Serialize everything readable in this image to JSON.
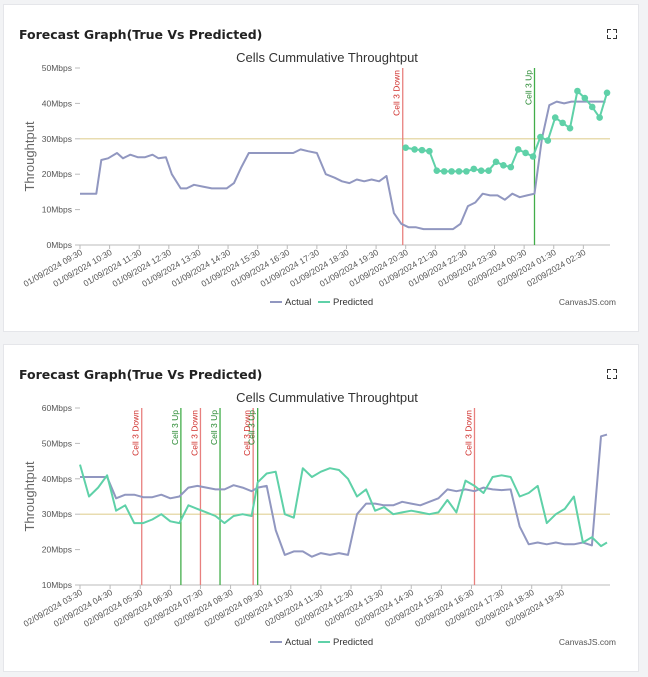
{
  "credit": "CanvasJS.com",
  "cards": [
    {
      "heading": "Forecast Graph(True Vs Predicted)",
      "chart_data": {
        "type": "line",
        "title": "Cells Cummulative Throughtput",
        "ylabel": "Throughtput",
        "xlabel": "",
        "y_ticks": [
          "0Mbps",
          "10Mbps",
          "20Mbps",
          "30Mbps",
          "40Mbps",
          "50Mbps"
        ],
        "ylim": [
          0,
          50
        ],
        "x_labels": [
          "01/09/2024 09:30",
          "01/09/2024 10:30",
          "01/09/2024 11:30",
          "01/09/2024 12:30",
          "01/09/2024 13:30",
          "01/09/2024 14:30",
          "01/09/2024 15:30",
          "01/09/2024 16:30",
          "01/09/2024 17:30",
          "01/09/2024 18:30",
          "01/09/2024 19:30",
          "01/09/2024 20:30",
          "01/09/2024 21:30",
          "01/09/2024 22:30",
          "01/09/2024 23:30",
          "02/09/2024 00:30",
          "02/09/2024 01:30",
          "02/09/2024 02:30"
        ],
        "xlim": [
          0,
          17.9
        ],
        "threshold": 30,
        "threshold_color": "#e8dcb0",
        "series": [
          {
            "name": "Actual",
            "color": "#9197c0",
            "markers": false,
            "x": [
              0,
              0.55,
              0.72,
              0.95,
              1.25,
              1.45,
              1.7,
              1.95,
              2.2,
              2.45,
              2.65,
              2.9,
              3.1,
              3.4,
              3.6,
              3.85,
              4.15,
              4.45,
              4.7,
              4.95,
              5.2,
              5.45,
              5.7,
              5.95,
              6.2,
              6.45,
              6.7,
              6.95,
              7.2,
              7.45,
              7.7,
              8,
              8.3,
              8.6,
              8.85,
              9.1,
              9.35,
              9.6,
              9.85,
              10.1,
              10.35,
              10.6,
              10.85,
              11.1,
              11.35,
              11.6,
              11.85,
              12.1,
              12.35,
              12.6,
              12.85,
              13.1,
              13.35,
              13.6,
              13.85,
              14.1,
              14.35,
              14.6,
              14.85,
              15.1,
              15.35,
              15.6,
              15.85,
              16.1,
              16.35,
              16.6,
              16.85,
              17.1,
              17.4,
              17.75
            ],
            "values": [
              14.5,
              14.5,
              24,
              24.5,
              26,
              24.5,
              25.5,
              24.8,
              24.8,
              25.5,
              24.5,
              24.8,
              20,
              16,
              16,
              17,
              16.5,
              16,
              16,
              16,
              17.5,
              22,
              26,
              26,
              26,
              26,
              26,
              26,
              26,
              27,
              26.5,
              26,
              20,
              19,
              18,
              17.5,
              18.5,
              18,
              18.5,
              18,
              19.5,
              9,
              6,
              5,
              5,
              4.5,
              4.5,
              4.5,
              4.5,
              4.5,
              6,
              11,
              12,
              14.5,
              14,
              14,
              12.8,
              14.5,
              13.5,
              14,
              14.5,
              30,
              39.5,
              40.5,
              40,
              40.5,
              40.5,
              40.5,
              40.5,
              40.5
            ]
          },
          {
            "name": "Predicted",
            "color": "#5fd1a8",
            "markers": true,
            "x": [
              11,
              11.3,
              11.55,
              11.8,
              12.05,
              12.3,
              12.55,
              12.8,
              13.05,
              13.3,
              13.55,
              13.8,
              14.05,
              14.3,
              14.55,
              14.8,
              15.05,
              15.3,
              15.55,
              15.8,
              16.05,
              16.3,
              16.55,
              16.8,
              17.05,
              17.3,
              17.55,
              17.8
            ],
            "values": [
              27.5,
              27,
              26.8,
              26.5,
              21,
              20.8,
              20.8,
              20.8,
              20.8,
              21.5,
              21,
              21,
              23.5,
              22.5,
              22,
              27,
              26,
              25,
              30.5,
              29.5,
              36,
              34.5,
              33,
              43.5,
              41.5,
              39,
              36,
              43
            ]
          }
        ],
        "markers": [
          {
            "label": "Cell 3 Down",
            "x": 10.9,
            "color": "#e8807e"
          },
          {
            "label": "Cell 3 Up",
            "x": 15.35,
            "color": "#42ad4a"
          }
        ],
        "legend": "bottom-center"
      }
    },
    {
      "heading": "Forecast Graph(True Vs Predicted)",
      "chart_data": {
        "type": "line",
        "title": "Cells Cummulative Throughtput",
        "ylabel": "Throughtput",
        "xlabel": "",
        "y_ticks": [
          "10Mbps",
          "20Mbps",
          "30Mbps",
          "40Mbps",
          "50Mbps",
          "60Mbps"
        ],
        "ylim": [
          10,
          60
        ],
        "x_labels": [
          "02/09/2024 03:30",
          "02/09/2024 04:30",
          "02/09/2024 05:30",
          "02/09/2024 06:30",
          "02/09/2024 07:30",
          "02/09/2024 08:30",
          "02/09/2024 09:30",
          "02/09/2024 10:30",
          "02/09/2024 11:30",
          "02/09/2024 12:30",
          "02/09/2024 13:30",
          "02/09/2024 14:30",
          "02/09/2024 15:30",
          "02/09/2024 16:30",
          "02/09/2024 17:30",
          "02/09/2024 18:30",
          "02/09/2024 19:30"
        ],
        "xlim": [
          0,
          17.6
        ],
        "threshold": 30,
        "threshold_color": "#e8dcb0",
        "series": [
          {
            "name": "Actual",
            "color": "#9197c0",
            "markers": false,
            "x": [
              0,
              0.3,
              0.6,
              0.9,
              1.2,
              1.5,
              1.8,
              2.1,
              2.4,
              2.7,
              3,
              3.3,
              3.6,
              3.9,
              4.2,
              4.5,
              4.8,
              5.1,
              5.4,
              5.7,
              5.9,
              6.2,
              6.5,
              6.8,
              7.1,
              7.4,
              7.7,
              8,
              8.3,
              8.6,
              8.9,
              9.2,
              9.5,
              9.8,
              10.1,
              10.4,
              10.7,
              11,
              11.3,
              11.6,
              11.9,
              12.2,
              12.5,
              12.8,
              13.1,
              13.4,
              13.7,
              14,
              14.3,
              14.6,
              14.9,
              15.2,
              15.5,
              15.8,
              16.1,
              16.4,
              16.7,
              17,
              17.3,
              17.5
            ],
            "values": [
              40.5,
              40.5,
              40.5,
              40.5,
              34.5,
              35.5,
              35.5,
              34.8,
              34.8,
              35.5,
              34.5,
              35,
              37.5,
              38,
              37.5,
              37,
              37,
              38.2,
              37.5,
              36.5,
              37.5,
              38,
              25.5,
              18.5,
              19.5,
              19.5,
              18,
              19,
              18.5,
              19,
              18.5,
              30,
              33,
              33,
              32.5,
              32.5,
              33.5,
              33,
              32.5,
              33.5,
              34.5,
              37,
              36.5,
              37,
              36.5,
              37.5,
              37,
              36.8,
              37,
              26.5,
              21.5,
              22,
              21.5,
              22,
              21.5,
              21.5,
              22,
              21.2,
              52,
              52.5
            ]
          },
          {
            "name": "Predicted",
            "color": "#5fd1a8",
            "markers": false,
            "x": [
              0,
              0.3,
              0.6,
              0.9,
              1.2,
              1.5,
              1.8,
              2.1,
              2.4,
              2.7,
              3,
              3.3,
              3.6,
              3.9,
              4.2,
              4.5,
              4.8,
              5.1,
              5.4,
              5.7,
              5.9,
              6.2,
              6.5,
              6.8,
              7.1,
              7.4,
              7.7,
              8,
              8.3,
              8.6,
              8.9,
              9.2,
              9.5,
              9.8,
              10.1,
              10.4,
              10.7,
              11,
              11.3,
              11.6,
              11.9,
              12.2,
              12.5,
              12.8,
              13.1,
              13.4,
              13.7,
              14,
              14.3,
              14.6,
              14.9,
              15.2,
              15.5,
              15.8,
              16.1,
              16.4,
              16.7,
              17,
              17.3,
              17.5
            ],
            "values": [
              44,
              35,
              37.5,
              41,
              31,
              32.5,
              27.5,
              27.5,
              28.5,
              30,
              28,
              27.5,
              32.5,
              31.5,
              30.5,
              29.5,
              27.5,
              29.5,
              30,
              29.5,
              39,
              41.5,
              42,
              30,
              29,
              43,
              40.5,
              42,
              43,
              42.5,
              40,
              35,
              37,
              31,
              32,
              30,
              30.5,
              31,
              30.5,
              30,
              30.5,
              34,
              30.5,
              39.5,
              38,
              36,
              40.5,
              41,
              40.5,
              35,
              36,
              38,
              27.5,
              30,
              31.5,
              35,
              22,
              23.5,
              21,
              22
            ]
          }
        ],
        "markers": [
          {
            "label": "Cell 3 Down",
            "x": 2.05,
            "color": "#e8807e"
          },
          {
            "label": "Cell 3 Up",
            "x": 3.35,
            "color": "#42ad4a"
          },
          {
            "label": "Cell 3 Down",
            "x": 4.0,
            "color": "#e8807e"
          },
          {
            "label": "Cell 3 Up",
            "x": 4.65,
            "color": "#42ad4a"
          },
          {
            "label": "Cell 3 Down",
            "x": 5.75,
            "color": "#e8807e"
          },
          {
            "label": "Cell 3 Up",
            "x": 5.9,
            "color": "#42ad4a"
          },
          {
            "label": "Cell 3 Down",
            "x": 13.1,
            "color": "#e8807e"
          }
        ],
        "legend": "bottom-center"
      }
    }
  ]
}
